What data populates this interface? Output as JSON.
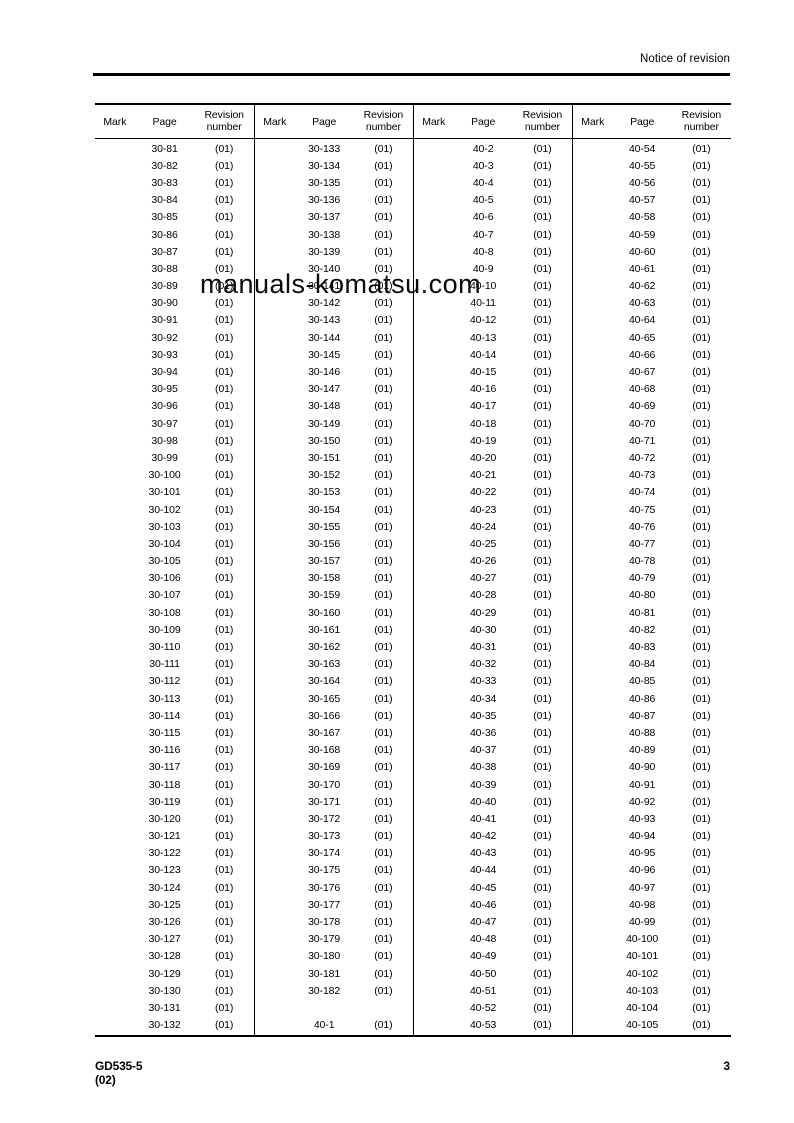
{
  "header": {
    "title": "Notice of revision"
  },
  "watermark": "manuals-komatsu.com",
  "footer": {
    "model": "GD535-5",
    "revision": "(02)",
    "page_number": "3"
  },
  "table": {
    "column_headers": {
      "mark": "Mark",
      "page": "Page",
      "revision": "Revision number"
    },
    "revision_value": "(01)",
    "columns": [
      {
        "pages": [
          "30-81",
          "30-82",
          "30-83",
          "30-84",
          "30-85",
          "30-86",
          "30-87",
          "30-88",
          "30-89",
          "30-90",
          "30-91",
          "30-92",
          "30-93",
          "30-94",
          "30-95",
          "30-96",
          "30-97",
          "30-98",
          "30-99",
          "30-100",
          "30-101",
          "30-102",
          "30-103",
          "30-104",
          "30-105",
          "30-106",
          "30-107",
          "30-108",
          "30-109",
          "30-110",
          "30-111",
          "30-112",
          "30-113",
          "30-114",
          "30-115",
          "30-116",
          "30-117",
          "30-118",
          "30-119",
          "30-120",
          "30-121",
          "30-122",
          "30-123",
          "30-124",
          "30-125",
          "30-126",
          "30-127",
          "30-128",
          "30-129",
          "30-130",
          "30-131",
          "30-132"
        ]
      },
      {
        "pages": [
          "30-133",
          "30-134",
          "30-135",
          "30-136",
          "30-137",
          "30-138",
          "30-139",
          "30-140",
          "30-141",
          "30-142",
          "30-143",
          "30-144",
          "30-145",
          "30-146",
          "30-147",
          "30-148",
          "30-149",
          "30-150",
          "30-151",
          "30-152",
          "30-153",
          "30-154",
          "30-155",
          "30-156",
          "30-157",
          "30-158",
          "30-159",
          "30-160",
          "30-161",
          "30-162",
          "30-163",
          "30-164",
          "30-165",
          "30-166",
          "30-167",
          "30-168",
          "30-169",
          "30-170",
          "30-171",
          "30-172",
          "30-173",
          "30-174",
          "30-175",
          "30-176",
          "30-177",
          "30-178",
          "30-179",
          "30-180",
          "30-181",
          "30-182",
          "",
          "40-1"
        ]
      },
      {
        "pages": [
          "40-2",
          "40-3",
          "40-4",
          "40-5",
          "40-6",
          "40-7",
          "40-8",
          "40-9",
          "40-10",
          "40-11",
          "40-12",
          "40-13",
          "40-14",
          "40-15",
          "40-16",
          "40-17",
          "40-18",
          "40-19",
          "40-20",
          "40-21",
          "40-22",
          "40-23",
          "40-24",
          "40-25",
          "40-26",
          "40-27",
          "40-28",
          "40-29",
          "40-30",
          "40-31",
          "40-32",
          "40-33",
          "40-34",
          "40-35",
          "40-36",
          "40-37",
          "40-38",
          "40-39",
          "40-40",
          "40-41",
          "40-42",
          "40-43",
          "40-44",
          "40-45",
          "40-46",
          "40-47",
          "40-48",
          "40-49",
          "40-50",
          "40-51",
          "40-52",
          "40-53"
        ]
      },
      {
        "pages": [
          "40-54",
          "40-55",
          "40-56",
          "40-57",
          "40-58",
          "40-59",
          "40-60",
          "40-61",
          "40-62",
          "40-63",
          "40-64",
          "40-65",
          "40-66",
          "40-67",
          "40-68",
          "40-69",
          "40-70",
          "40-71",
          "40-72",
          "40-73",
          "40-74",
          "40-75",
          "40-76",
          "40-77",
          "40-78",
          "40-79",
          "40-80",
          "40-81",
          "40-82",
          "40-83",
          "40-84",
          "40-85",
          "40-86",
          "40-87",
          "40-88",
          "40-89",
          "40-90",
          "40-91",
          "40-92",
          "40-93",
          "40-94",
          "40-95",
          "40-96",
          "40-97",
          "40-98",
          "40-99",
          "40-100",
          "40-101",
          "40-102",
          "40-103",
          "40-104",
          "40-105"
        ]
      }
    ]
  }
}
